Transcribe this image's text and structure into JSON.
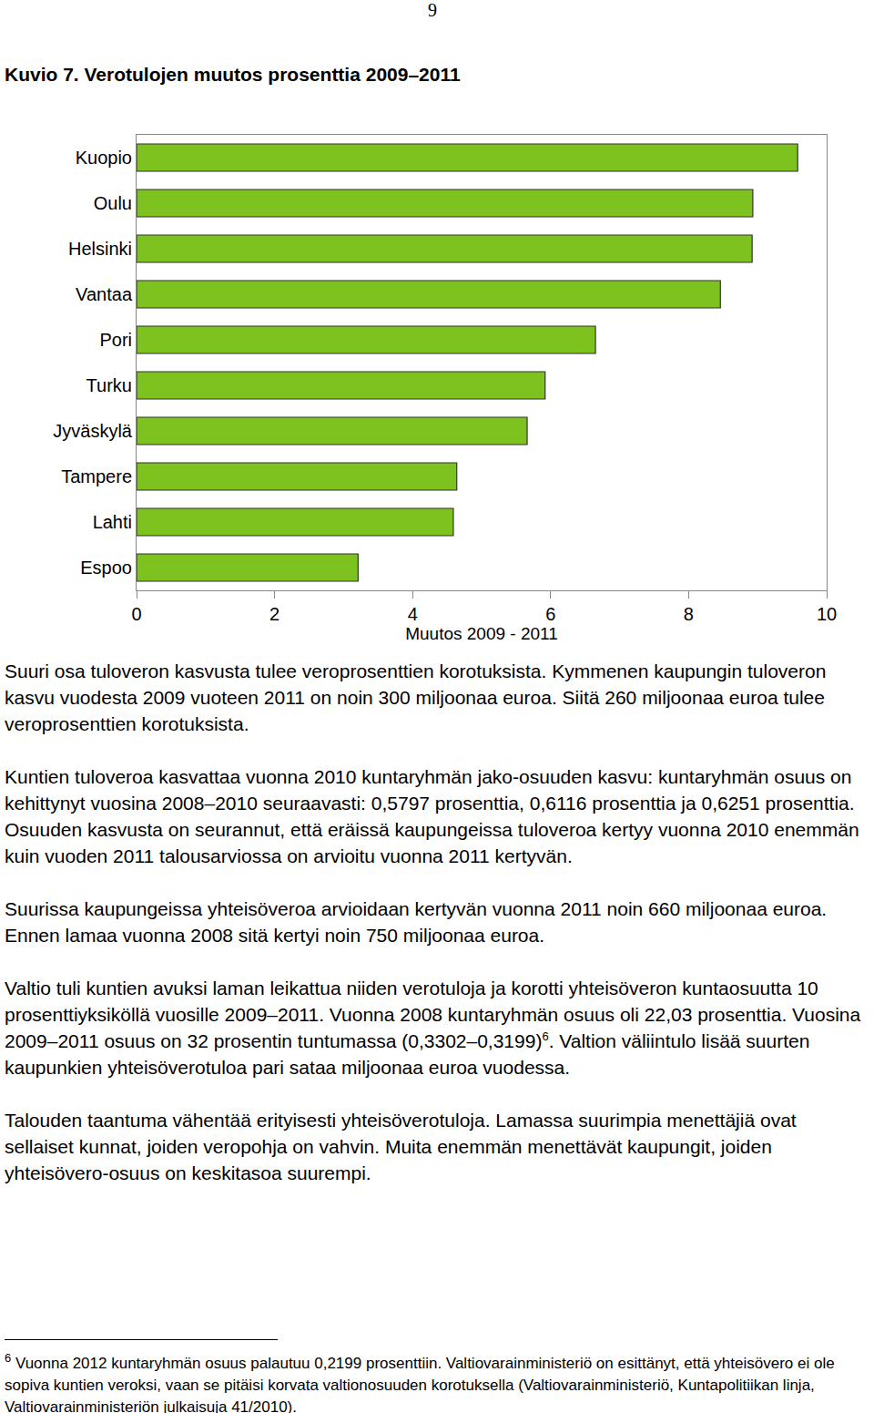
{
  "page_number": "9",
  "chart_data": {
    "type": "bar",
    "title": "Kuvio 7. Verotulojen muutos prosenttia 2009–2011",
    "orientation": "horizontal",
    "categories": [
      "Kuopio",
      "Oulu",
      "Helsinki",
      "Vantaa",
      "Pori",
      "Turku",
      "Jyväskylä",
      "Tampere",
      "Lahti",
      "Espoo"
    ],
    "values": [
      9.58,
      8.93,
      8.92,
      8.46,
      6.65,
      5.92,
      5.66,
      4.64,
      4.59,
      3.21
    ],
    "color": "#7dc21e",
    "xlabel": "Muutos 2009 - 2011",
    "xlim": [
      0,
      10
    ],
    "xticks": [
      0,
      2,
      4,
      6,
      8,
      10
    ],
    "grid": false
  },
  "paragraphs": [
    {
      "text": "Suuri osa tuloveron kasvusta tulee veroprosenttien korotuksista. Kymmenen kaupungin tuloveron kasvu vuodesta 2009 vuoteen 2011 on noin 300 miljoonaa euroa. Siitä 260 miljoonaa euroa tulee veroprosenttien korotuksista."
    },
    {
      "text": "Kuntien tuloveroa kasvattaa vuonna 2010 kuntaryhmän jako-osuuden kasvu: kuntaryhmän osuus on kehittynyt vuosina 2008–2010 seuraavasti: 0,5797 prosenttia, 0,6116 prosenttia ja 0,6251 prosenttia. Osuuden kasvusta on seurannut, että eräissä kaupungeissa tuloveroa kertyy vuonna 2010 enemmän kuin vuoden 2011 talousarviossa on arvioitu vuonna 2011 kertyvän."
    },
    {
      "text": "Suurissa kaupungeissa yhteisöveroa arvioidaan kertyvän vuonna 2011 noin 660 miljoonaa euroa. Ennen lamaa vuonna 2008 sitä kertyi noin 750 miljoonaa euroa."
    },
    {
      "text": "Valtio tuli kuntien avuksi laman leikattua niiden verotuloja ja korotti yhteisöveron kuntaosuutta 10 prosenttiyksiköllä vuosille 2009–2011. Vuonna 2008 kuntaryhmän osuus oli 22,03 prosenttia. Vuosina 2009–2011 osuus on 32 prosentin tuntumassa (0,3302–0,3199)",
      "sup": "6",
      "text_after": ". Valtion väliintulo lisää suurten kaupunkien yhteisöverotuloa pari sataa miljoonaa euroa vuodessa."
    },
    {
      "text": "Talouden taantuma vähentää erityisesti yhteisöverotuloja. Lamassa suurimpia menettäjiä ovat sellaiset kunnat, joiden veropohja on vahvin. Muita enemmän menettävät kaupungit, joiden yhteisövero-osuus on keskitasoa suurempi."
    }
  ],
  "footnote": {
    "sup": "6",
    "text": "Vuonna 2012 kuntaryhmän osuus palautuu 0,2199 prosenttiin. Valtiovarainministeriö on esittänyt, että yhteisövero ei ole sopiva kuntien veroksi, vaan se pitäisi korvata valtionosuuden korotuksella (Valtiovarainministeriö, Kuntapolitiikan linja, Valtiovarainministeriön julkaisuja 41/2010)."
  }
}
